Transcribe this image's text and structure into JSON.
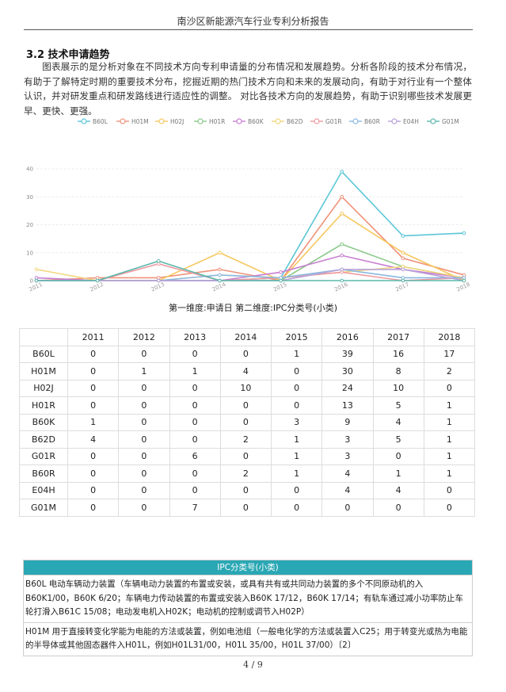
{
  "header": {
    "title": "南沙区新能源汽车行业专利分析报告"
  },
  "section": {
    "heading": "3.2  技术申请趋势",
    "paragraph": "图表展示的是分析对象在不同技术方向专利申请量的分布情况和发展趋势。分析各阶段的技术分布情况，有助于了解特定时期的重要技术分布，挖掘近期的热门技术方向和未来的发展动向，有助于对行业有一个整体认识，并对研发重点和研发路线进行适应性的调整。 对比各技术方向的发展趋势，有助于识别哪些技术发展更早、更快、更强。"
  },
  "chart_data": {
    "type": "line",
    "title": "",
    "xlabel": "",
    "ylabel": "",
    "x": [
      "2011",
      "2012",
      "2013",
      "2014",
      "2015",
      "2016",
      "2017",
      "2018"
    ],
    "y_ticks": [
      0,
      10,
      20,
      30,
      40
    ],
    "ylim": [
      0,
      40
    ],
    "grid": "horizontal",
    "legend_position": "top",
    "series": [
      {
        "name": "B60L",
        "color": "#5bc6d6",
        "values": [
          0,
          0,
          0,
          0,
          1,
          39,
          16,
          17
        ]
      },
      {
        "name": "H01M",
        "color": "#f0927a",
        "values": [
          0,
          1,
          1,
          4,
          0,
          30,
          8,
          2
        ]
      },
      {
        "name": "H02J",
        "color": "#f6c85f",
        "values": [
          0,
          0,
          0,
          10,
          0,
          24,
          10,
          0
        ]
      },
      {
        "name": "H01R",
        "color": "#8bc98b",
        "values": [
          0,
          0,
          0,
          0,
          0,
          13,
          5,
          1
        ]
      },
      {
        "name": "B60K",
        "color": "#c77dd1",
        "values": [
          1,
          0,
          0,
          0,
          3,
          9,
          4,
          1
        ]
      },
      {
        "name": "B62D",
        "color": "#f2d67c",
        "values": [
          4,
          0,
          0,
          2,
          1,
          3,
          5,
          1
        ]
      },
      {
        "name": "G01R",
        "color": "#ef9aa0",
        "values": [
          0,
          0,
          6,
          0,
          1,
          3,
          0,
          1
        ]
      },
      {
        "name": "B60R",
        "color": "#8ab8e0",
        "values": [
          0,
          0,
          0,
          2,
          1,
          4,
          1,
          1
        ]
      },
      {
        "name": "E04H",
        "color": "#b7a2d8",
        "values": [
          0,
          0,
          0,
          0,
          0,
          4,
          4,
          0
        ]
      },
      {
        "name": "G01M",
        "color": "#5cb8ac",
        "values": [
          0,
          0,
          7,
          0,
          0,
          0,
          0,
          0
        ]
      }
    ]
  },
  "chart_caption": "第一维度:申请日  第二维度:IPC分类号(小类)",
  "table": {
    "columns": [
      "",
      "2011",
      "2012",
      "2013",
      "2014",
      "2015",
      "2016",
      "2017",
      "2018"
    ],
    "rows": [
      {
        "label": "B60L",
        "values": [
          "0",
          "0",
          "0",
          "0",
          "1",
          "39",
          "16",
          "17"
        ]
      },
      {
        "label": "H01M",
        "values": [
          "0",
          "1",
          "1",
          "4",
          "0",
          "30",
          "8",
          "2"
        ]
      },
      {
        "label": "H02J",
        "values": [
          "0",
          "0",
          "0",
          "10",
          "0",
          "24",
          "10",
          "0"
        ]
      },
      {
        "label": "H01R",
        "values": [
          "0",
          "0",
          "0",
          "0",
          "0",
          "13",
          "5",
          "1"
        ]
      },
      {
        "label": "B60K",
        "values": [
          "1",
          "0",
          "0",
          "0",
          "3",
          "9",
          "4",
          "1"
        ]
      },
      {
        "label": "B62D",
        "values": [
          "4",
          "0",
          "0",
          "2",
          "1",
          "3",
          "5",
          "1"
        ]
      },
      {
        "label": "G01R",
        "values": [
          "0",
          "0",
          "6",
          "0",
          "1",
          "3",
          "0",
          "1"
        ]
      },
      {
        "label": "B60R",
        "values": [
          "0",
          "0",
          "0",
          "2",
          "1",
          "4",
          "1",
          "1"
        ]
      },
      {
        "label": "E04H",
        "values": [
          "0",
          "0",
          "0",
          "0",
          "0",
          "4",
          "4",
          "0"
        ]
      },
      {
        "label": "G01M",
        "values": [
          "0",
          "0",
          "7",
          "0",
          "0",
          "0",
          "0",
          "0"
        ]
      }
    ]
  },
  "ipc": {
    "header": "IPC分类号(小类)",
    "accent_color": "#2aa7b4",
    "entries": [
      "B60L  电动车辆动力装置（车辆电动力装置的布置或安装，或具有共有或共同动力装置的多个不同原动机的入B60K1/00，B60K 6/20；车辆电力传动装置的布置或安装入B60K 17/12，B60K 17/14；有轨车通过减小功率防止车轮打滑入B61C 15/08；电动发电机入H02K；电动机的控制或调节入H02P）",
      "H01M  用于直接转变化学能为电能的方法或装置，例如电池组（一般电化学的方法或装置入C25；用于转变光或热为电能的半导体或其他固态器件入H01L，例如H01L31/00，H01L 35/00，H01L 37/00）〔2〕"
    ]
  },
  "footer": {
    "page_number": "4 / 9"
  }
}
